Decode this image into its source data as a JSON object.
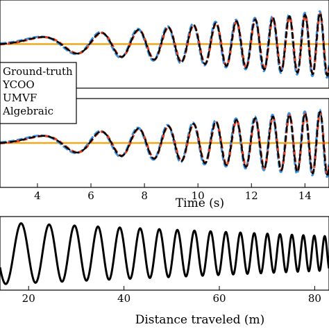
{
  "chart_data": [
    {
      "type": "line",
      "panel": "top",
      "xlabel": "",
      "xlim": [
        2.6,
        14.9
      ],
      "series": [
        {
          "name": "Ground-truth",
          "color": "#000000",
          "style": "solid"
        },
        {
          "name": "YCOO",
          "color": "#3a8fe0",
          "style": "dashed"
        },
        {
          "name": "UMVF",
          "color": "#e0421f",
          "style": "dashed"
        },
        {
          "name": "Algebraic",
          "color": "#f2a81d",
          "style": "solid"
        }
      ],
      "signal": {
        "f0_hz": 0.05,
        "chirp_rate": 0.145,
        "amp_start": 0.15,
        "amp_end": 1.0
      }
    },
    {
      "type": "line",
      "panel": "middle",
      "xlabel": "Time (s)",
      "xlim": [
        2.6,
        14.9
      ],
      "xticks": [
        4,
        6,
        8,
        10,
        12,
        14
      ],
      "series": [
        {
          "name": "Ground-truth",
          "color": "#000000",
          "style": "solid"
        },
        {
          "name": "YCOO",
          "color": "#3a8fe0",
          "style": "dashed"
        },
        {
          "name": "UMVF",
          "color": "#e0421f",
          "style": "dashed"
        },
        {
          "name": "Algebraic",
          "color": "#f2a81d",
          "style": "solid"
        }
      ],
      "signal": {
        "f0_hz": 0.05,
        "chirp_rate": 0.145,
        "amp_start": 0.15,
        "amp_end": 1.0
      }
    },
    {
      "type": "line",
      "panel": "bottom",
      "xlabel": "Distance traveled (m)",
      "xlim": [
        14,
        83
      ],
      "xticks": [
        20,
        40,
        60,
        80
      ],
      "series": [
        {
          "name": "Ground-truth",
          "color": "#000000",
          "style": "solid"
        }
      ],
      "signal": {
        "wavelength_start_m": 7.2,
        "wavelength_end_m": 2.1,
        "amp_start": 1.0,
        "amp_end": 0.55
      }
    }
  ],
  "legend": {
    "position": "left",
    "entries": [
      "Ground-truth",
      "YCOO",
      "UMVF",
      "Algebraic"
    ]
  },
  "colors": {
    "ground_truth": "#000000",
    "ycoo": "#3a8fe0",
    "umvf": "#e0421f",
    "algebraic": "#f2a81d"
  }
}
